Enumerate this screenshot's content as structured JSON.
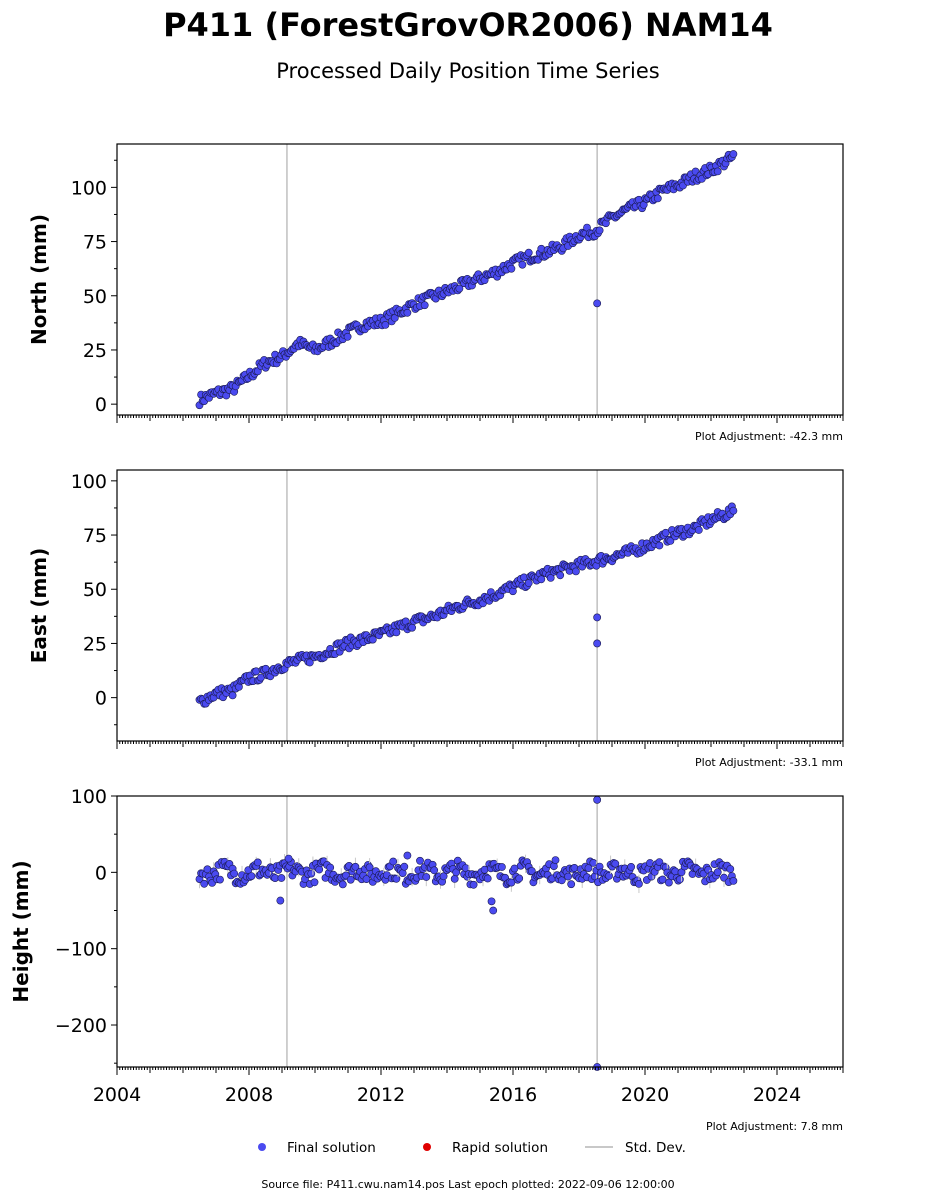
{
  "title": "P411 (ForestGrovOR2006) NAM14",
  "subtitle": "Processed Daily Position Time Series",
  "footer": "Source file: P411.cwu.nam14.pos  Last epoch plotted: 2022-09-06 12:00:00",
  "colors": {
    "final": "#4a4af0",
    "final_edge": "#1a1a50",
    "rapid": "#e00000",
    "stddev": "#c8c8c8",
    "vline": "#c0c0c0"
  },
  "legend": {
    "placement": "bottom-center",
    "items": [
      {
        "label": "Final solution",
        "kind": "marker",
        "color": "#4a4af0"
      },
      {
        "label": "Rapid solution",
        "kind": "marker",
        "color": "#e00000"
      },
      {
        "label": "Std. Dev.",
        "kind": "line",
        "color": "#c8c8c8"
      }
    ]
  },
  "chart_data": [
    {
      "type": "scatter",
      "ylabel": "North (mm)",
      "adjustment": "Plot Adjustment: -42.3 mm",
      "xlim": [
        2004,
        2026
      ],
      "ylim": [
        -5,
        120
      ],
      "yticks": [
        0,
        25,
        50,
        75,
        100
      ],
      "xticks": [
        2004,
        2008,
        2012,
        2016,
        2020,
        2024
      ],
      "show_xtick_labels": false,
      "vlines": [
        2009.15,
        2018.55
      ],
      "series": [
        {
          "start": 2006.5,
          "end": 2022.68,
          "points": [
            [
              2006.5,
              2
            ],
            [
              2007.0,
              5
            ],
            [
              2007.5,
              7
            ],
            [
              2008.0,
              13
            ],
            [
              2008.5,
              19
            ],
            [
              2009.0,
              22
            ],
            [
              2009.5,
              28
            ],
            [
              2010.0,
              25
            ],
            [
              2010.5,
              29
            ],
            [
              2011.0,
              33
            ],
            [
              2011.5,
              37
            ],
            [
              2012.0,
              38
            ],
            [
              2012.5,
              42
            ],
            [
              2013.0,
              46
            ],
            [
              2013.5,
              49
            ],
            [
              2014.0,
              52
            ],
            [
              2014.5,
              55
            ],
            [
              2015.0,
              58
            ],
            [
              2015.5,
              61
            ],
            [
              2016.0,
              65
            ],
            [
              2016.5,
              68
            ],
            [
              2017.0,
              70
            ],
            [
              2017.5,
              73
            ],
            [
              2018.0,
              78
            ],
            [
              2018.5,
              80
            ],
            [
              2019.0,
              86
            ],
            [
              2019.5,
              90
            ],
            [
              2020.0,
              93
            ],
            [
              2020.5,
              98
            ],
            [
              2021.0,
              101
            ],
            [
              2021.5,
              105
            ],
            [
              2022.0,
              108
            ],
            [
              2022.68,
              114
            ]
          ],
          "outliers": [
            [
              2018.55,
              46.5
            ]
          ]
        }
      ]
    },
    {
      "type": "scatter",
      "ylabel": "East (mm)",
      "adjustment": "Plot Adjustment: -33.1 mm",
      "xlim": [
        2004,
        2026
      ],
      "ylim": [
        -20,
        105
      ],
      "yticks": [
        0,
        25,
        50,
        75,
        100
      ],
      "xticks": [
        2004,
        2008,
        2012,
        2016,
        2020,
        2024
      ],
      "show_xtick_labels": false,
      "vlines": [
        2009.15,
        2018.55
      ],
      "series": [
        {
          "start": 2006.5,
          "end": 2022.68,
          "points": [
            [
              2006.5,
              -2
            ],
            [
              2007.0,
              2
            ],
            [
              2007.5,
              3
            ],
            [
              2008.0,
              9
            ],
            [
              2008.5,
              11
            ],
            [
              2009.0,
              15
            ],
            [
              2009.5,
              17
            ],
            [
              2010.0,
              19
            ],
            [
              2010.5,
              22
            ],
            [
              2011.0,
              25
            ],
            [
              2011.5,
              27
            ],
            [
              2012.0,
              29
            ],
            [
              2012.5,
              32
            ],
            [
              2013.0,
              35
            ],
            [
              2013.5,
              37
            ],
            [
              2014.0,
              40
            ],
            [
              2014.5,
              43
            ],
            [
              2015.0,
              45
            ],
            [
              2015.5,
              48
            ],
            [
              2016.0,
              51
            ],
            [
              2016.5,
              54
            ],
            [
              2017.0,
              57
            ],
            [
              2017.5,
              59
            ],
            [
              2018.0,
              61
            ],
            [
              2018.5,
              63
            ],
            [
              2019.0,
              65
            ],
            [
              2019.5,
              67
            ],
            [
              2020.0,
              70
            ],
            [
              2020.5,
              73
            ],
            [
              2021.0,
              76
            ],
            [
              2021.5,
              78
            ],
            [
              2022.0,
              82
            ],
            [
              2022.68,
              86
            ]
          ],
          "outliers": [
            [
              2018.55,
              37
            ],
            [
              2018.55,
              25
            ]
          ]
        }
      ]
    },
    {
      "type": "scatter",
      "ylabel": "Height (mm)",
      "adjustment": "Plot Adjustment: 7.8 mm",
      "xlim": [
        2004,
        2026
      ],
      "ylim": [
        -255,
        100
      ],
      "yticks": [
        -200,
        -100,
        0,
        100
      ],
      "ytick_labels": [
        "−200",
        "−100",
        "0",
        "100"
      ],
      "xticks": [
        2004,
        2008,
        2012,
        2016,
        2020,
        2024
      ],
      "show_xtick_labels": true,
      "vlines": [
        2009.15,
        2018.55
      ],
      "series": [
        {
          "start": 2006.5,
          "end": 2022.68,
          "points": [
            [
              2006.5,
              0
            ],
            [
              2022.68,
              0
            ]
          ],
          "spread": 25,
          "outliers": [
            [
              2008.95,
              -37
            ],
            [
              2009.2,
              18
            ],
            [
              2012.8,
              22
            ],
            [
              2015.35,
              -38
            ],
            [
              2015.4,
              -50
            ],
            [
              2018.55,
              95
            ],
            [
              2018.55,
              -255
            ]
          ]
        }
      ]
    }
  ]
}
